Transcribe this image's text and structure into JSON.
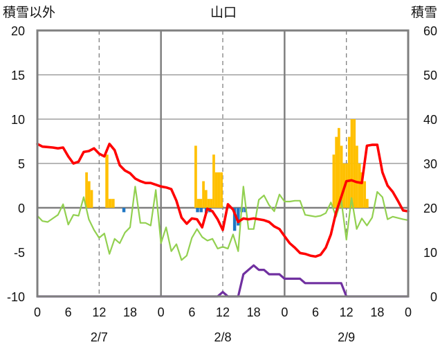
{
  "chart_data": {
    "type": "bar+line",
    "title": "山口",
    "left_axis_label": "積雪以外",
    "right_axis_label": "積雪",
    "left_ylim": [
      -10,
      20
    ],
    "left_ticks": [
      "20",
      "15",
      "10",
      "5",
      "0",
      "-5",
      "-10"
    ],
    "right_ylim": [
      0,
      60
    ],
    "right_ticks": [
      "60",
      "50",
      "40",
      "30",
      "20",
      "10",
      "0"
    ],
    "x_range_hours": [
      0,
      72
    ],
    "x_tick_labels": [
      "0",
      "6",
      "12",
      "18",
      "0",
      "6",
      "12",
      "18",
      "0",
      "6",
      "12",
      "18",
      "0"
    ],
    "date_labels": [
      "2/7",
      "2/8",
      "2/9"
    ],
    "grid": {
      "solid_vertical_hours": [
        24,
        48
      ],
      "dashed_vertical_hours": [
        12,
        36,
        60
      ],
      "horizontal_lines": [
        5,
        10,
        15
      ]
    },
    "colors": {
      "temperature": "#ff0000",
      "hourly_change": "#92d050",
      "snowfall": "#ffc000",
      "negative_bars": "#1f77c4",
      "snow_depth": "#7030a0",
      "frame": "#7f7f7f"
    },
    "series": [
      {
        "key": "temperature",
        "axis": "left",
        "points": [
          [
            0,
            7.2
          ],
          [
            1,
            6.9
          ],
          [
            2,
            6.85
          ],
          [
            3,
            6.8
          ],
          [
            4,
            6.7
          ],
          [
            5,
            6.8
          ],
          [
            6,
            5.8
          ],
          [
            7,
            5.0
          ],
          [
            8,
            5.2
          ],
          [
            9,
            6.3
          ],
          [
            10,
            6.4
          ],
          [
            11,
            6.7
          ],
          [
            12,
            6.1
          ],
          [
            13,
            5.8
          ],
          [
            14,
            7.2
          ],
          [
            15,
            6.5
          ],
          [
            16,
            4.8
          ],
          [
            17,
            4.2
          ],
          [
            18,
            3.9
          ],
          [
            19,
            3.3
          ],
          [
            20,
            3.0
          ],
          [
            21,
            2.8
          ],
          [
            22,
            2.8
          ],
          [
            23,
            2.6
          ],
          [
            24,
            2.4
          ],
          [
            25,
            2.3
          ],
          [
            26,
            2.1
          ],
          [
            27,
            0.8
          ],
          [
            28,
            -1.1
          ],
          [
            29,
            -1.8
          ],
          [
            30,
            -1.2
          ],
          [
            31,
            -1.3
          ],
          [
            32,
            -2.2
          ],
          [
            33,
            -0.1
          ],
          [
            34,
            -0.4
          ],
          [
            35,
            -1.3
          ],
          [
            36,
            -2.5
          ],
          [
            37,
            0.4
          ],
          [
            38,
            -0.2
          ],
          [
            39,
            -1.6
          ],
          [
            40,
            -1.2
          ],
          [
            41,
            -1.3
          ],
          [
            42,
            -1.2
          ],
          [
            43,
            -1.3
          ],
          [
            44,
            -1.4
          ],
          [
            45,
            -1.6
          ],
          [
            46,
            -2.1
          ],
          [
            47,
            -2.4
          ],
          [
            48,
            -3.2
          ],
          [
            49,
            -4.0
          ],
          [
            50,
            -4.5
          ],
          [
            51,
            -5.1
          ],
          [
            52,
            -5.2
          ],
          [
            53,
            -5.4
          ],
          [
            54,
            -5.5
          ],
          [
            55,
            -5.3
          ],
          [
            56,
            -4.5
          ],
          [
            57,
            -3.0
          ],
          [
            58,
            -0.5
          ],
          [
            59,
            1.2
          ],
          [
            60,
            3.0
          ],
          [
            61,
            3.1
          ],
          [
            62,
            2.9
          ],
          [
            63,
            2.8
          ],
          [
            64,
            7.0
          ],
          [
            65,
            7.1
          ],
          [
            66,
            7.1
          ],
          [
            67,
            4.0
          ],
          [
            68,
            2.5
          ],
          [
            69,
            1.8
          ],
          [
            70,
            0.8
          ],
          [
            71,
            -0.3
          ],
          [
            72,
            -0.4
          ]
        ]
      },
      {
        "key": "hourly_change",
        "axis": "left",
        "points": [
          [
            0,
            -0.9
          ],
          [
            1,
            -1.5
          ],
          [
            2,
            -1.6
          ],
          [
            3,
            -1.2
          ],
          [
            4,
            -0.8
          ],
          [
            5,
            0.4
          ],
          [
            6,
            -1.9
          ],
          [
            7,
            -0.8
          ],
          [
            8,
            -0.9
          ],
          [
            9,
            1.2
          ],
          [
            10,
            -1.3
          ],
          [
            11,
            -2.5
          ],
          [
            12,
            -3.4
          ],
          [
            13,
            -2.9
          ],
          [
            14,
            -5.2
          ],
          [
            15,
            -3.5
          ],
          [
            16,
            -4.0
          ],
          [
            17,
            -2.8
          ],
          [
            18,
            -2.2
          ],
          [
            19,
            2.4
          ],
          [
            20,
            -1.7
          ],
          [
            21,
            -1.7
          ],
          [
            22,
            -2.0
          ],
          [
            23,
            2.0
          ],
          [
            24,
            -4.0
          ],
          [
            25,
            -2.2
          ],
          [
            26,
            -4.9
          ],
          [
            27,
            -4.1
          ],
          [
            28,
            -5.9
          ],
          [
            29,
            -5.4
          ],
          [
            30,
            -3.4
          ],
          [
            31,
            -2.4
          ],
          [
            32,
            -3.3
          ],
          [
            33,
            -3.7
          ],
          [
            34,
            -3.5
          ],
          [
            35,
            -4.6
          ],
          [
            36,
            -4.4
          ],
          [
            37,
            -4.6
          ],
          [
            38,
            -3.0
          ],
          [
            39,
            -4.9
          ],
          [
            40,
            2.4
          ],
          [
            41,
            -2.4
          ],
          [
            42,
            -2.4
          ],
          [
            43,
            0.9
          ],
          [
            44,
            1.4
          ],
          [
            45,
            0.3
          ],
          [
            46,
            -0.4
          ],
          [
            47,
            1.5
          ],
          [
            48,
            0.7
          ],
          [
            49,
            0.7
          ],
          [
            50,
            0.8
          ],
          [
            51,
            0.8
          ],
          [
            52,
            -0.8
          ],
          [
            53,
            -0.9
          ],
          [
            54,
            -1.0
          ],
          [
            55,
            -0.9
          ],
          [
            56,
            -0.6
          ],
          [
            57,
            0.6
          ],
          [
            58,
            -1.0
          ],
          [
            59,
            0.9
          ],
          [
            60,
            -3.6
          ],
          [
            61,
            1.1
          ],
          [
            62,
            -2.4
          ],
          [
            63,
            -1.2
          ],
          [
            64,
            -2.0
          ],
          [
            65,
            -1.1
          ],
          [
            66,
            1.8
          ],
          [
            67,
            1.2
          ],
          [
            68,
            -1.3
          ],
          [
            69,
            -1.0
          ],
          [
            71,
            -1.3
          ],
          [
            72,
            -1.4
          ]
        ]
      },
      {
        "key": "snow_depth",
        "axis": "right",
        "points": [
          [
            0,
            0
          ],
          [
            35,
            0
          ],
          [
            36,
            1
          ],
          [
            37,
            0
          ],
          [
            38,
            0
          ],
          [
            39,
            0
          ],
          [
            40,
            5
          ],
          [
            41,
            6
          ],
          [
            42,
            7
          ],
          [
            43,
            6
          ],
          [
            44,
            6
          ],
          [
            45,
            5
          ],
          [
            46,
            5
          ],
          [
            47,
            5
          ],
          [
            48,
            4
          ],
          [
            49,
            4
          ],
          [
            50,
            4
          ],
          [
            51,
            4
          ],
          [
            52,
            3
          ],
          [
            53,
            3
          ],
          [
            54,
            3
          ],
          [
            55,
            3
          ],
          [
            56,
            3
          ],
          [
            57,
            3
          ],
          [
            58,
            3
          ],
          [
            59,
            3
          ],
          [
            60,
            0
          ],
          [
            61,
            0
          ],
          [
            72,
            0
          ]
        ]
      }
    ],
    "snowfall_bars": [
      {
        "x": 9.3,
        "w": 0.5,
        "v": 4
      },
      {
        "x": 9.8,
        "w": 0.5,
        "v": 3
      },
      {
        "x": 10.3,
        "w": 0.5,
        "v": 2
      },
      {
        "x": 13.2,
        "w": 0.6,
        "v": 6
      },
      {
        "x": 13.8,
        "w": 0.6,
        "v": 1
      },
      {
        "x": 14.4,
        "w": 0.6,
        "v": 1
      },
      {
        "x": 30.5,
        "w": 0.5,
        "v": 7
      },
      {
        "x": 31.0,
        "w": 0.5,
        "v": 1
      },
      {
        "x": 31.5,
        "w": 0.5,
        "v": 1
      },
      {
        "x": 32.0,
        "w": 0.5,
        "v": 3
      },
      {
        "x": 32.5,
        "w": 0.5,
        "v": 2
      },
      {
        "x": 33.0,
        "w": 0.5,
        "v": 1
      },
      {
        "x": 33.5,
        "w": 0.5,
        "v": 1
      },
      {
        "x": 34.0,
        "w": 0.5,
        "v": 6
      },
      {
        "x": 34.5,
        "w": 0.5,
        "v": 4
      },
      {
        "x": 35.0,
        "w": 0.5,
        "v": 4
      },
      {
        "x": 35.5,
        "w": 0.5,
        "v": 4
      },
      {
        "x": 57.3,
        "w": 0.5,
        "v": 6
      },
      {
        "x": 57.8,
        "w": 0.5,
        "v": 8
      },
      {
        "x": 58.3,
        "w": 0.5,
        "v": 9
      },
      {
        "x": 58.8,
        "w": 0.5,
        "v": 7
      },
      {
        "x": 59.3,
        "w": 0.5,
        "v": 5
      },
      {
        "x": 59.8,
        "w": 0.5,
        "v": 5
      },
      {
        "x": 60.3,
        "w": 0.5,
        "v": 8
      },
      {
        "x": 60.8,
        "w": 0.5,
        "v": 10
      },
      {
        "x": 61.3,
        "w": 0.5,
        "v": 10
      },
      {
        "x": 61.8,
        "w": 0.5,
        "v": 7
      },
      {
        "x": 62.3,
        "w": 0.5,
        "v": 5
      },
      {
        "x": 62.8,
        "w": 0.5,
        "v": 4
      },
      {
        "x": 63.3,
        "w": 0.5,
        "v": 3
      },
      {
        "x": 63.8,
        "w": 0.5,
        "v": 1
      }
    ],
    "negative_bars": [
      {
        "x": 16.5,
        "w": 0.6,
        "v": -0.5
      },
      {
        "x": 30.8,
        "w": 0.6,
        "v": -0.5
      },
      {
        "x": 31.5,
        "w": 0.6,
        "v": -0.5
      },
      {
        "x": 32.5,
        "w": 0.6,
        "v": -0.6
      },
      {
        "x": 33.2,
        "w": 0.6,
        "v": -0.5
      },
      {
        "x": 38.0,
        "w": 0.6,
        "v": -2.6
      },
      {
        "x": 38.7,
        "w": 0.6,
        "v": -2.0
      },
      {
        "x": 39.4,
        "w": 0.6,
        "v": -0.5
      },
      {
        "x": 40.1,
        "w": 0.6,
        "v": -0.5
      }
    ]
  }
}
